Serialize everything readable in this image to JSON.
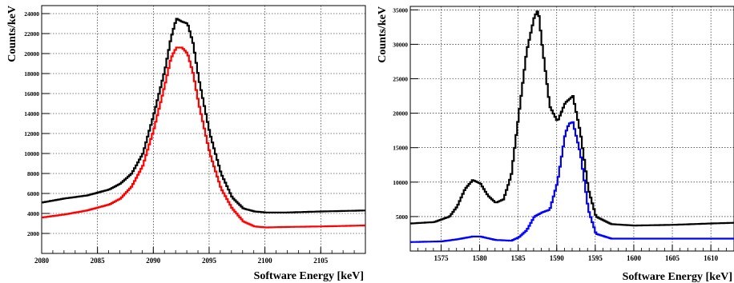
{
  "chart_data": [
    {
      "type": "line",
      "title": "",
      "xlabel": "Software Energy [keV]",
      "ylabel": "Counts/keV",
      "xlim": [
        2080,
        2109
      ],
      "ylim": [
        0,
        24800
      ],
      "x_ticks": [
        2080,
        2085,
        2090,
        2095,
        2100,
        2105
      ],
      "x_tick_labels": [
        "2080",
        "2085",
        "2090",
        "2095",
        "2100",
        "2105"
      ],
      "y_ticks": [
        2000,
        4000,
        6000,
        8000,
        10000,
        12000,
        14000,
        16000,
        18000,
        20000,
        22000,
        24000
      ],
      "y_tick_labels": [
        "2000",
        "4000",
        "6000",
        "8000",
        "10000",
        "12000",
        "14000",
        "16000",
        "18000",
        "20000",
        "22000",
        "24000"
      ],
      "grid": true,
      "series": [
        {
          "color": "#000000",
          "x": [
            2080,
            2082,
            2084,
            2086,
            2087,
            2088,
            2089,
            2090,
            2091,
            2091.5,
            2092,
            2092.5,
            2093,
            2093.5,
            2094,
            2095,
            2096,
            2097,
            2098,
            2099,
            2100,
            2102,
            2105,
            2109
          ],
          "y": [
            5100,
            5500,
            5800,
            6400,
            7000,
            8000,
            10000,
            14000,
            18500,
            21500,
            23500,
            23200,
            23000,
            21000,
            17500,
            12000,
            8000,
            5600,
            4500,
            4200,
            4100,
            4100,
            4200,
            4300
          ]
        },
        {
          "color": "#ff0000",
          "x": [
            2080,
            2082,
            2084,
            2086,
            2087,
            2088,
            2089,
            2090,
            2091,
            2091.5,
            2092,
            2092.5,
            2093,
            2093.5,
            2094,
            2095,
            2096,
            2097,
            2098,
            2099,
            2100,
            2102,
            2105,
            2109
          ],
          "y": [
            3600,
            3900,
            4300,
            4900,
            5500,
            6700,
            8800,
            12500,
            17000,
            19500,
            20600,
            20600,
            20000,
            18000,
            15000,
            10000,
            6500,
            4500,
            3200,
            2700,
            2600,
            2650,
            2700,
            2800
          ]
        }
      ]
    },
    {
      "type": "line",
      "title": "",
      "xlabel": "Software Energy [keV]",
      "ylabel": "Counts/keV",
      "xlim": [
        1571,
        1613
      ],
      "ylim": [
        0,
        35500
      ],
      "x_ticks": [
        1575,
        1580,
        1585,
        1590,
        1595,
        1600,
        1605,
        1610
      ],
      "x_tick_labels": [
        "1575",
        "1580",
        "1585",
        "1590",
        "1595",
        "1600",
        "1605",
        "1610"
      ],
      "y_ticks": [
        5000,
        10000,
        15000,
        20000,
        25000,
        30000,
        35000
      ],
      "y_tick_labels": [
        "5000",
        "10000",
        "15000",
        "20000",
        "25000",
        "30000",
        "35000"
      ],
      "grid": true,
      "series": [
        {
          "color": "#000000",
          "x": [
            1571,
            1574,
            1576,
            1577,
            1578,
            1579,
            1580,
            1581,
            1582,
            1583,
            1584,
            1585,
            1586,
            1587,
            1587.5,
            1588,
            1589,
            1590,
            1591,
            1592,
            1593,
            1594,
            1595,
            1597,
            1600,
            1605,
            1610,
            1613
          ],
          "y": [
            4000,
            4200,
            5000,
            6500,
            9000,
            10300,
            9800,
            8000,
            7000,
            7500,
            11000,
            20000,
            29000,
            34000,
            35000,
            30000,
            21000,
            18800,
            21500,
            22500,
            17000,
            9000,
            5000,
            3900,
            3700,
            3800,
            4000,
            4100
          ]
        },
        {
          "color": "#0000ff",
          "x": [
            1571,
            1575,
            1577,
            1579,
            1580,
            1582,
            1584,
            1585,
            1586,
            1587,
            1588,
            1589,
            1590,
            1591,
            1591.5,
            1592,
            1593,
            1594,
            1595,
            1597,
            1600,
            1605,
            1610,
            1613
          ],
          "y": [
            1300,
            1400,
            1700,
            2100,
            2100,
            1600,
            1500,
            2000,
            3000,
            5000,
            5600,
            6000,
            10000,
            17000,
            18500,
            18700,
            14000,
            6000,
            2500,
            1800,
            1800,
            1800,
            1800,
            1800
          ]
        }
      ]
    }
  ]
}
